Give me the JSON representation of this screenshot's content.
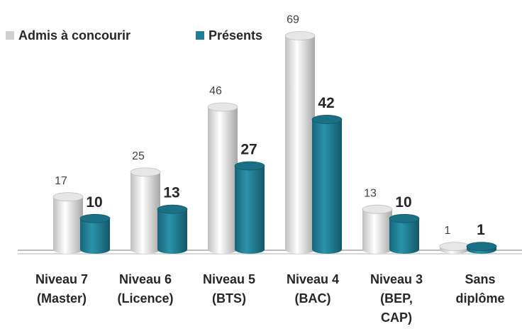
{
  "chart_data": {
    "type": "bar",
    "categories": [
      "Niveau 7\n(Master)",
      "Niveau 6\n(Licence)",
      "Niveau 5\n(BTS)",
      "Niveau 4\n(BAC)",
      "Niveau 3\n(BEP,\nCAP)",
      "Sans\ndiplôme"
    ],
    "series": [
      {
        "name": "Admis à concourir",
        "color": "#d9d9d9",
        "values": [
          17,
          25,
          46,
          69,
          13,
          1
        ]
      },
      {
        "name": "Présents",
        "color": "#1f7d92",
        "values": [
          10,
          13,
          27,
          42,
          10,
          1
        ]
      }
    ],
    "legend": "top-left"
  }
}
